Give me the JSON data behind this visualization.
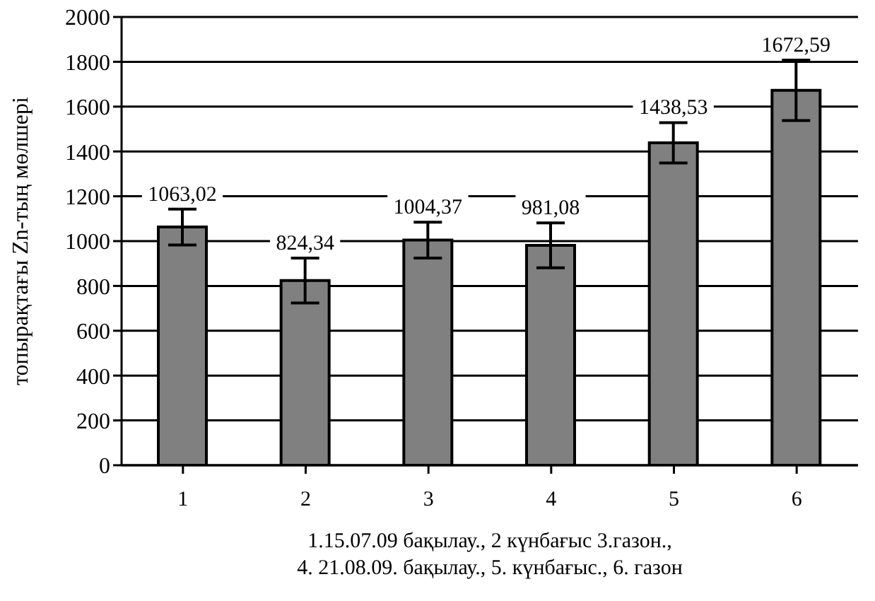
{
  "chart_data": {
    "type": "bar",
    "categories": [
      "1",
      "2",
      "3",
      "4",
      "5",
      "6"
    ],
    "values": [
      1063.02,
      824.34,
      1004.37,
      981.08,
      1438.53,
      1672.59
    ],
    "value_labels": [
      "1063,02",
      "824,34",
      "1004,37",
      "981,08",
      "1438,53",
      "1672,59"
    ],
    "errors": [
      80,
      100,
      80,
      100,
      90,
      135
    ],
    "color": "#808080",
    "ylabel": "топырақтағы Zn-тың мөлшері",
    "xlabel": "1.15.07.09 бақылау., 2 күнбағыс  3.газон.,\n4. 21.08.09. бақылау., 5. күнбағыс.,   6. газон",
    "ylim": [
      0,
      2000
    ],
    "yticks": [
      0,
      200,
      400,
      600,
      800,
      1000,
      1200,
      1400,
      1600,
      1800,
      2000
    ],
    "grid": "y"
  }
}
